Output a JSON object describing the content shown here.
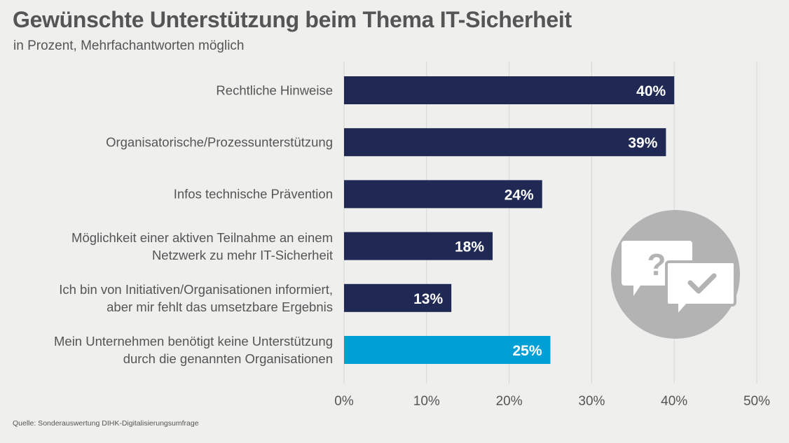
{
  "header": {
    "title": "Gewünschte Unterstützung beim Thema IT-Sicherheit",
    "subtitle": "in Prozent, Mehrfachantworten möglich"
  },
  "footer": {
    "source": "Quelle: Sonderauswertung DIHK-Digitalisierungsumfrage"
  },
  "icon": "question-and-checkmark-speech-bubbles-icon",
  "colors": {
    "bar": "#1f2954",
    "highlight": "#009fd6",
    "grid": "#d6d6d4",
    "icon_circle": "#b3b3b3"
  },
  "chart_data": {
    "type": "bar",
    "orientation": "horizontal",
    "title": "Gewünschte Unterstützung beim Thema IT-Sicherheit",
    "subtitle": "in Prozent, Mehrfachantworten möglich",
    "categories": [
      [
        "Rechtliche Hinweise"
      ],
      [
        "Organisatorische/Prozessunterstützung"
      ],
      [
        "Infos technische Prävention"
      ],
      [
        "Möglichkeit einer aktiven Teilnahme an einem",
        "Netzwerk zu mehr IT-Sicherheit"
      ],
      [
        "Ich bin von Initiativen/Organisationen informiert,",
        "aber mir fehlt das umsetzbare Ergebnis"
      ],
      [
        "Mein Unternehmen benötigt keine Unterstützung",
        "durch die genannten Organisationen"
      ]
    ],
    "values": [
      40,
      39,
      24,
      18,
      13,
      25
    ],
    "data_labels": [
      "40%",
      "39%",
      "24%",
      "18%",
      "13%",
      "25%"
    ],
    "highlighted": [
      false,
      false,
      false,
      false,
      false,
      true
    ],
    "xlim": [
      0,
      50
    ],
    "ticks": [
      0,
      10,
      20,
      30,
      40,
      50
    ],
    "tick_labels": [
      "0%",
      "10%",
      "20%",
      "30%",
      "40%",
      "50%"
    ],
    "grid": true
  }
}
